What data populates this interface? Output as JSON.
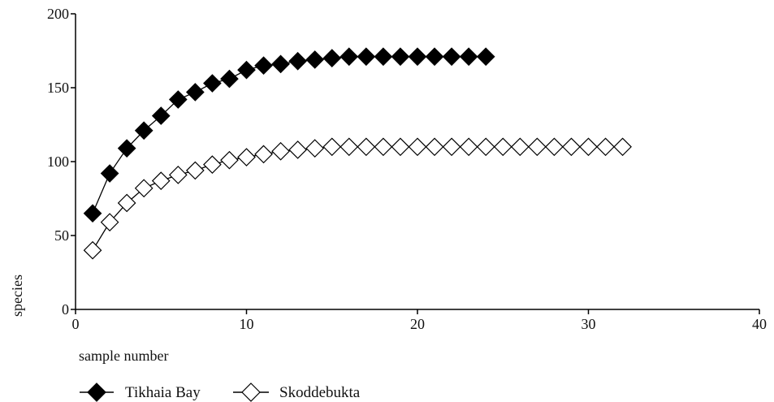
{
  "chart_data": {
    "type": "line",
    "xlabel": "sample number",
    "ylabel": "species",
    "xlim": [
      0,
      40
    ],
    "ylim": [
      0,
      200
    ],
    "x_ticks": [
      0,
      10,
      20,
      30,
      40
    ],
    "y_ticks": [
      0,
      50,
      100,
      150,
      200
    ],
    "grid": false,
    "legend_position": "bottom-left",
    "series": [
      {
        "name": "Tikhaia Bay",
        "marker": "filled-diamond",
        "color": "#000000",
        "x": [
          1,
          2,
          3,
          4,
          5,
          6,
          7,
          8,
          9,
          10,
          11,
          12,
          13,
          14,
          15,
          16,
          17,
          18,
          19,
          20,
          21,
          22,
          23,
          24
        ],
        "y": [
          65,
          92,
          109,
          121,
          131,
          142,
          147,
          153,
          156,
          162,
          165,
          166,
          168,
          169,
          170,
          171,
          171,
          171,
          171,
          171,
          171,
          171,
          171,
          171
        ]
      },
      {
        "name": "Skoddebukta",
        "marker": "open-diamond",
        "color": "#000000",
        "x": [
          1,
          2,
          3,
          4,
          5,
          6,
          7,
          8,
          9,
          10,
          11,
          12,
          13,
          14,
          15,
          16,
          17,
          18,
          19,
          20,
          21,
          22,
          23,
          24,
          25,
          26,
          27,
          28,
          29,
          30,
          31,
          32
        ],
        "y": [
          40,
          59,
          72,
          82,
          87,
          91,
          94,
          98,
          101,
          103,
          105,
          107,
          108,
          109,
          110,
          110,
          110,
          110,
          110,
          110,
          110,
          110,
          110,
          110,
          110,
          110,
          110,
          110,
          110,
          110,
          110,
          110
        ]
      }
    ]
  }
}
